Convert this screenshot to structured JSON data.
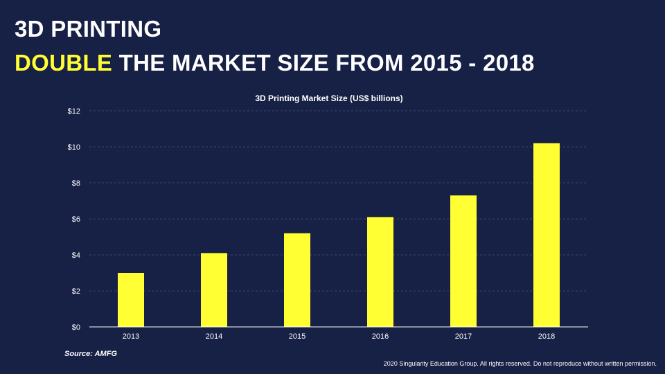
{
  "slide": {
    "title_line1": "3D PRINTING",
    "title_highlight": "DOUBLE",
    "title_rest": " THE MARKET SIZE FROM 2015 - 2018",
    "source": "Source: AMFG",
    "copyright": "2020 Singularity Education Group. All rights reserved. Do not reproduce without written permission."
  },
  "colors": {
    "background": "#172045",
    "bar": "#ffff33",
    "highlight": "#ffff33",
    "text": "#ffffff",
    "grid": "#3a4470"
  },
  "chart_data": {
    "type": "bar",
    "title": "3D Printing Market Size (US$ billions)",
    "categories": [
      "2013",
      "2014",
      "2015",
      "2016",
      "2017",
      "2018"
    ],
    "values": [
      3.0,
      4.1,
      5.2,
      6.1,
      7.3,
      10.2
    ],
    "yticks": [
      "$0",
      "$2",
      "$4",
      "$6",
      "$8",
      "$10",
      "$12"
    ],
    "ytick_values": [
      0,
      2,
      4,
      6,
      8,
      10,
      12
    ],
    "ylim": [
      0,
      12
    ],
    "xlabel": "",
    "ylabel": "",
    "grid": true,
    "legend": "none"
  }
}
